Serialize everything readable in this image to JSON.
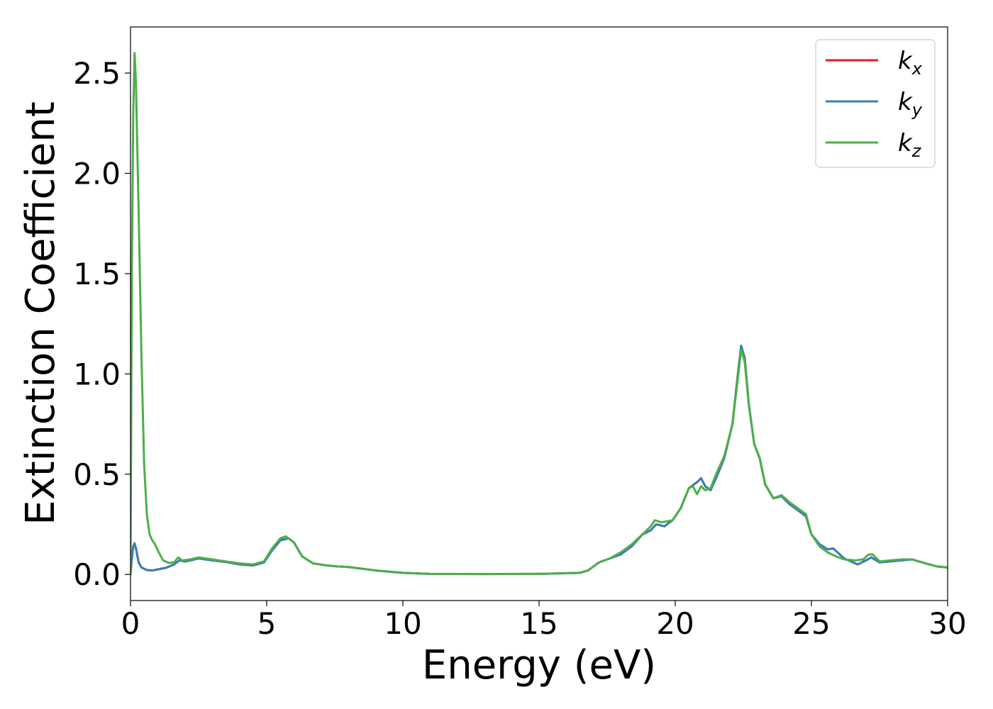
{
  "chart_data": {
    "type": "line",
    "xlabel": "Energy (eV)",
    "ylabel": "Extinction Coefficient",
    "xlim": [
      0,
      30
    ],
    "ylim": [
      -0.13,
      2.73
    ],
    "xticks": [
      "0",
      "5",
      "10",
      "15",
      "20",
      "25",
      "30"
    ],
    "yticks": [
      "0.0",
      "0.5",
      "1.0",
      "1.5",
      "2.0",
      "2.5"
    ],
    "grid": false,
    "legend": {
      "placement": "top-right",
      "entries": [
        {
          "base": "k",
          "sub": "x",
          "color": "#e41a1c"
        },
        {
          "base": "k",
          "sub": "y",
          "color": "#377eb8"
        },
        {
          "base": "k",
          "sub": "z",
          "color": "#4daf4a"
        }
      ]
    },
    "series": [
      {
        "name": "k_x",
        "color": "#e41a1c",
        "points": [
          [
            0,
            0.0
          ],
          [
            0.05,
            0.08
          ],
          [
            0.1,
            0.14
          ],
          [
            0.15,
            0.155
          ],
          [
            0.2,
            0.13
          ],
          [
            0.3,
            0.06
          ],
          [
            0.4,
            0.035
          ],
          [
            0.6,
            0.022
          ],
          [
            0.8,
            0.02
          ],
          [
            1.0,
            0.025
          ],
          [
            1.3,
            0.033
          ],
          [
            1.6,
            0.05
          ],
          [
            1.8,
            0.07
          ],
          [
            2.0,
            0.065
          ],
          [
            2.2,
            0.07
          ],
          [
            2.5,
            0.08
          ],
          [
            3.0,
            0.07
          ],
          [
            3.5,
            0.062
          ],
          [
            4.0,
            0.05
          ],
          [
            4.5,
            0.045
          ],
          [
            4.9,
            0.06
          ],
          [
            5.2,
            0.12
          ],
          [
            5.5,
            0.17
          ],
          [
            5.8,
            0.18
          ],
          [
            6.0,
            0.16
          ],
          [
            6.3,
            0.09
          ],
          [
            6.7,
            0.055
          ],
          [
            7.2,
            0.045
          ],
          [
            7.6,
            0.04
          ],
          [
            8.0,
            0.037
          ],
          [
            9.0,
            0.02
          ],
          [
            10.0,
            0.008
          ],
          [
            11.0,
            0.003
          ],
          [
            13.0,
            0.002
          ],
          [
            15.0,
            0.003
          ],
          [
            16.5,
            0.008
          ],
          [
            16.8,
            0.02
          ],
          [
            17.2,
            0.06
          ],
          [
            17.6,
            0.08
          ],
          [
            18.0,
            0.1
          ],
          [
            18.4,
            0.14
          ],
          [
            18.8,
            0.2
          ],
          [
            19.1,
            0.22
          ],
          [
            19.3,
            0.25
          ],
          [
            19.6,
            0.24
          ],
          [
            19.9,
            0.27
          ],
          [
            20.2,
            0.33
          ],
          [
            20.5,
            0.43
          ],
          [
            20.8,
            0.46
          ],
          [
            20.95,
            0.48
          ],
          [
            21.1,
            0.44
          ],
          [
            21.3,
            0.42
          ],
          [
            21.5,
            0.48
          ],
          [
            21.8,
            0.58
          ],
          [
            22.1,
            0.75
          ],
          [
            22.3,
            1.0
          ],
          [
            22.42,
            1.14
          ],
          [
            22.55,
            1.08
          ],
          [
            22.7,
            0.85
          ],
          [
            22.9,
            0.65
          ],
          [
            23.1,
            0.58
          ],
          [
            23.3,
            0.45
          ],
          [
            23.6,
            0.38
          ],
          [
            23.9,
            0.39
          ],
          [
            24.2,
            0.35
          ],
          [
            24.5,
            0.32
          ],
          [
            24.8,
            0.29
          ],
          [
            25.0,
            0.2
          ],
          [
            25.3,
            0.15
          ],
          [
            25.6,
            0.125
          ],
          [
            25.8,
            0.13
          ],
          [
            26.2,
            0.08
          ],
          [
            26.7,
            0.05
          ],
          [
            27.0,
            0.07
          ],
          [
            27.2,
            0.085
          ],
          [
            27.5,
            0.06
          ],
          [
            27.9,
            0.065
          ],
          [
            28.3,
            0.07
          ],
          [
            28.7,
            0.075
          ],
          [
            29.2,
            0.055
          ],
          [
            29.6,
            0.04
          ],
          [
            30.0,
            0.035
          ]
        ]
      },
      {
        "name": "k_y",
        "color": "#377eb8",
        "points": [
          [
            0,
            0.0
          ],
          [
            0.05,
            0.08
          ],
          [
            0.1,
            0.14
          ],
          [
            0.15,
            0.155
          ],
          [
            0.2,
            0.13
          ],
          [
            0.3,
            0.06
          ],
          [
            0.4,
            0.035
          ],
          [
            0.6,
            0.022
          ],
          [
            0.8,
            0.02
          ],
          [
            1.0,
            0.025
          ],
          [
            1.3,
            0.033
          ],
          [
            1.6,
            0.05
          ],
          [
            1.8,
            0.07
          ],
          [
            2.0,
            0.065
          ],
          [
            2.2,
            0.07
          ],
          [
            2.5,
            0.08
          ],
          [
            3.0,
            0.07
          ],
          [
            3.5,
            0.062
          ],
          [
            4.0,
            0.05
          ],
          [
            4.5,
            0.045
          ],
          [
            4.9,
            0.06
          ],
          [
            5.2,
            0.12
          ],
          [
            5.5,
            0.17
          ],
          [
            5.8,
            0.18
          ],
          [
            6.0,
            0.16
          ],
          [
            6.3,
            0.09
          ],
          [
            6.7,
            0.055
          ],
          [
            7.2,
            0.045
          ],
          [
            7.6,
            0.04
          ],
          [
            8.0,
            0.037
          ],
          [
            9.0,
            0.02
          ],
          [
            10.0,
            0.008
          ],
          [
            11.0,
            0.003
          ],
          [
            13.0,
            0.002
          ],
          [
            15.0,
            0.003
          ],
          [
            16.5,
            0.008
          ],
          [
            16.8,
            0.02
          ],
          [
            17.2,
            0.06
          ],
          [
            17.6,
            0.08
          ],
          [
            18.0,
            0.1
          ],
          [
            18.4,
            0.14
          ],
          [
            18.8,
            0.2
          ],
          [
            19.1,
            0.22
          ],
          [
            19.3,
            0.25
          ],
          [
            19.6,
            0.24
          ],
          [
            19.9,
            0.27
          ],
          [
            20.2,
            0.33
          ],
          [
            20.5,
            0.43
          ],
          [
            20.8,
            0.46
          ],
          [
            20.95,
            0.48
          ],
          [
            21.1,
            0.44
          ],
          [
            21.3,
            0.42
          ],
          [
            21.5,
            0.48
          ],
          [
            21.8,
            0.58
          ],
          [
            22.1,
            0.75
          ],
          [
            22.3,
            1.0
          ],
          [
            22.42,
            1.14
          ],
          [
            22.55,
            1.08
          ],
          [
            22.7,
            0.85
          ],
          [
            22.9,
            0.65
          ],
          [
            23.1,
            0.58
          ],
          [
            23.3,
            0.45
          ],
          [
            23.6,
            0.38
          ],
          [
            23.9,
            0.39
          ],
          [
            24.2,
            0.35
          ],
          [
            24.5,
            0.32
          ],
          [
            24.8,
            0.29
          ],
          [
            25.0,
            0.2
          ],
          [
            25.3,
            0.15
          ],
          [
            25.6,
            0.125
          ],
          [
            25.8,
            0.13
          ],
          [
            26.2,
            0.08
          ],
          [
            26.7,
            0.05
          ],
          [
            27.0,
            0.07
          ],
          [
            27.2,
            0.085
          ],
          [
            27.5,
            0.06
          ],
          [
            27.9,
            0.065
          ],
          [
            28.3,
            0.07
          ],
          [
            28.7,
            0.075
          ],
          [
            29.2,
            0.055
          ],
          [
            29.6,
            0.04
          ],
          [
            30.0,
            0.035
          ]
        ]
      },
      {
        "name": "k_z",
        "color": "#4daf4a",
        "points": [
          [
            0,
            0.0
          ],
          [
            0.05,
            1.5
          ],
          [
            0.1,
            2.3
          ],
          [
            0.15,
            2.6
          ],
          [
            0.2,
            2.45
          ],
          [
            0.3,
            1.8
          ],
          [
            0.4,
            1.1
          ],
          [
            0.5,
            0.55
          ],
          [
            0.6,
            0.3
          ],
          [
            0.7,
            0.2
          ],
          [
            0.8,
            0.17
          ],
          [
            0.9,
            0.15
          ],
          [
            1.0,
            0.12
          ],
          [
            1.2,
            0.07
          ],
          [
            1.4,
            0.058
          ],
          [
            1.6,
            0.06
          ],
          [
            1.75,
            0.085
          ],
          [
            1.9,
            0.07
          ],
          [
            2.2,
            0.075
          ],
          [
            2.5,
            0.085
          ],
          [
            3.0,
            0.075
          ],
          [
            3.5,
            0.065
          ],
          [
            4.0,
            0.055
          ],
          [
            4.5,
            0.05
          ],
          [
            4.9,
            0.065
          ],
          [
            5.2,
            0.13
          ],
          [
            5.5,
            0.18
          ],
          [
            5.7,
            0.19
          ],
          [
            6.0,
            0.16
          ],
          [
            6.3,
            0.09
          ],
          [
            6.7,
            0.055
          ],
          [
            7.2,
            0.045
          ],
          [
            7.6,
            0.04
          ],
          [
            8.0,
            0.037
          ],
          [
            9.0,
            0.02
          ],
          [
            10.0,
            0.008
          ],
          [
            11.0,
            0.003
          ],
          [
            13.0,
            0.002
          ],
          [
            15.0,
            0.003
          ],
          [
            16.5,
            0.008
          ],
          [
            16.8,
            0.02
          ],
          [
            17.2,
            0.06
          ],
          [
            17.6,
            0.08
          ],
          [
            18.0,
            0.11
          ],
          [
            18.4,
            0.15
          ],
          [
            18.8,
            0.2
          ],
          [
            19.1,
            0.24
          ],
          [
            19.25,
            0.27
          ],
          [
            19.5,
            0.26
          ],
          [
            19.9,
            0.27
          ],
          [
            20.2,
            0.33
          ],
          [
            20.5,
            0.43
          ],
          [
            20.65,
            0.44
          ],
          [
            20.8,
            0.4
          ],
          [
            20.95,
            0.44
          ],
          [
            21.1,
            0.42
          ],
          [
            21.3,
            0.43
          ],
          [
            21.5,
            0.5
          ],
          [
            21.8,
            0.59
          ],
          [
            22.1,
            0.75
          ],
          [
            22.3,
            0.98
          ],
          [
            22.42,
            1.12
          ],
          [
            22.55,
            1.06
          ],
          [
            22.7,
            0.85
          ],
          [
            22.9,
            0.65
          ],
          [
            23.1,
            0.58
          ],
          [
            23.3,
            0.45
          ],
          [
            23.6,
            0.38
          ],
          [
            23.9,
            0.395
          ],
          [
            24.2,
            0.36
          ],
          [
            24.5,
            0.33
          ],
          [
            24.8,
            0.3
          ],
          [
            25.0,
            0.2
          ],
          [
            25.3,
            0.14
          ],
          [
            25.6,
            0.11
          ],
          [
            25.9,
            0.09
          ],
          [
            26.2,
            0.075
          ],
          [
            26.6,
            0.07
          ],
          [
            26.9,
            0.075
          ],
          [
            27.1,
            0.1
          ],
          [
            27.25,
            0.1
          ],
          [
            27.5,
            0.065
          ],
          [
            27.9,
            0.07
          ],
          [
            28.3,
            0.075
          ],
          [
            28.7,
            0.075
          ],
          [
            29.2,
            0.055
          ],
          [
            29.6,
            0.04
          ],
          [
            30.0,
            0.035
          ]
        ]
      }
    ]
  }
}
